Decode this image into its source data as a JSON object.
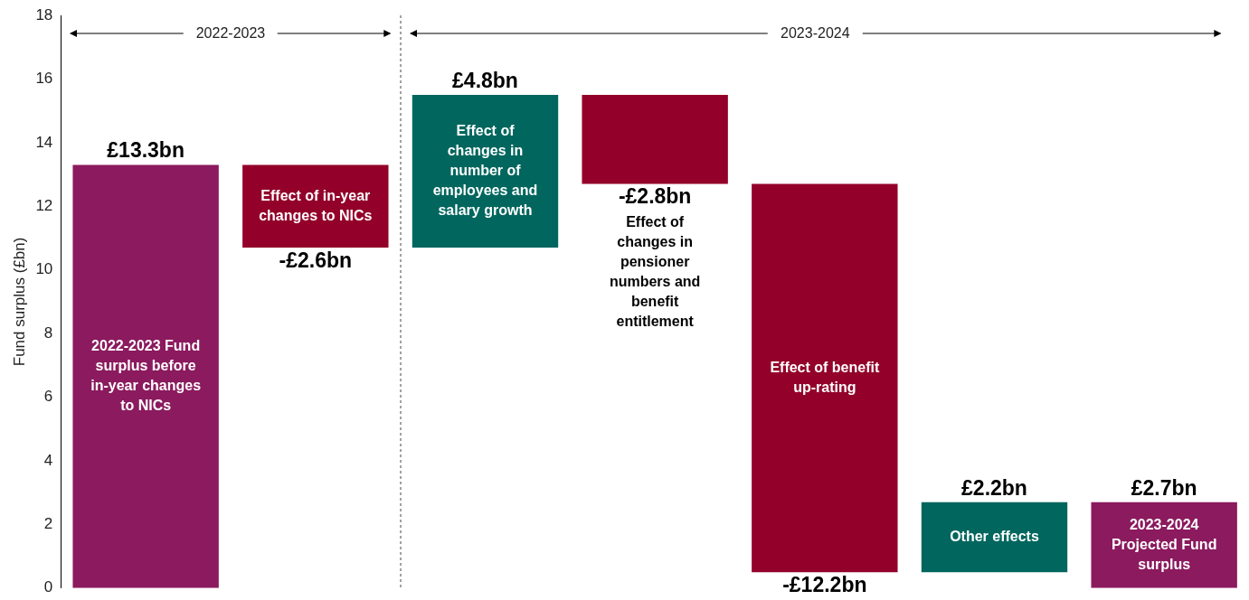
{
  "chart_data": {
    "type": "bar",
    "ylabel": "Fund surplus (£bn)",
    "categories": [
      "2022-2023 Fund surplus before in-year changes to NICs",
      "Effect of in-year changes to NICs",
      "Effect of changes in number of employees and salary growth",
      "Effect of changes in pensioner numbers and benefit entitlement",
      "Effect of benefit up-rating",
      "Other effects",
      "2023-2024 Projected Fund surplus"
    ],
    "values": [
      13.3,
      -2.6,
      4.8,
      -2.8,
      -12.2,
      2.2,
      2.7
    ],
    "base": [
      0,
      13.3,
      10.7,
      15.5,
      12.7,
      0.5,
      0
    ],
    "colors": [
      "#8b1a5e",
      "#930029",
      "#00665e",
      "#930029",
      "#930029",
      "#00665e",
      "#8b1a5e"
    ],
    "value_labels": [
      "£13.3bn",
      "-£2.6bn",
      "£4.8bn",
      "-£2.8bn",
      "-£12.2bn",
      "£2.2bn",
      "£2.7bn"
    ],
    "annotations": [
      "2022-2023",
      "2023-2024"
    ],
    "ylim": [
      0,
      18
    ],
    "yticks": [
      0,
      2,
      4,
      6,
      8,
      10,
      12,
      14,
      16,
      18
    ],
    "tick_labels": "y"
  }
}
